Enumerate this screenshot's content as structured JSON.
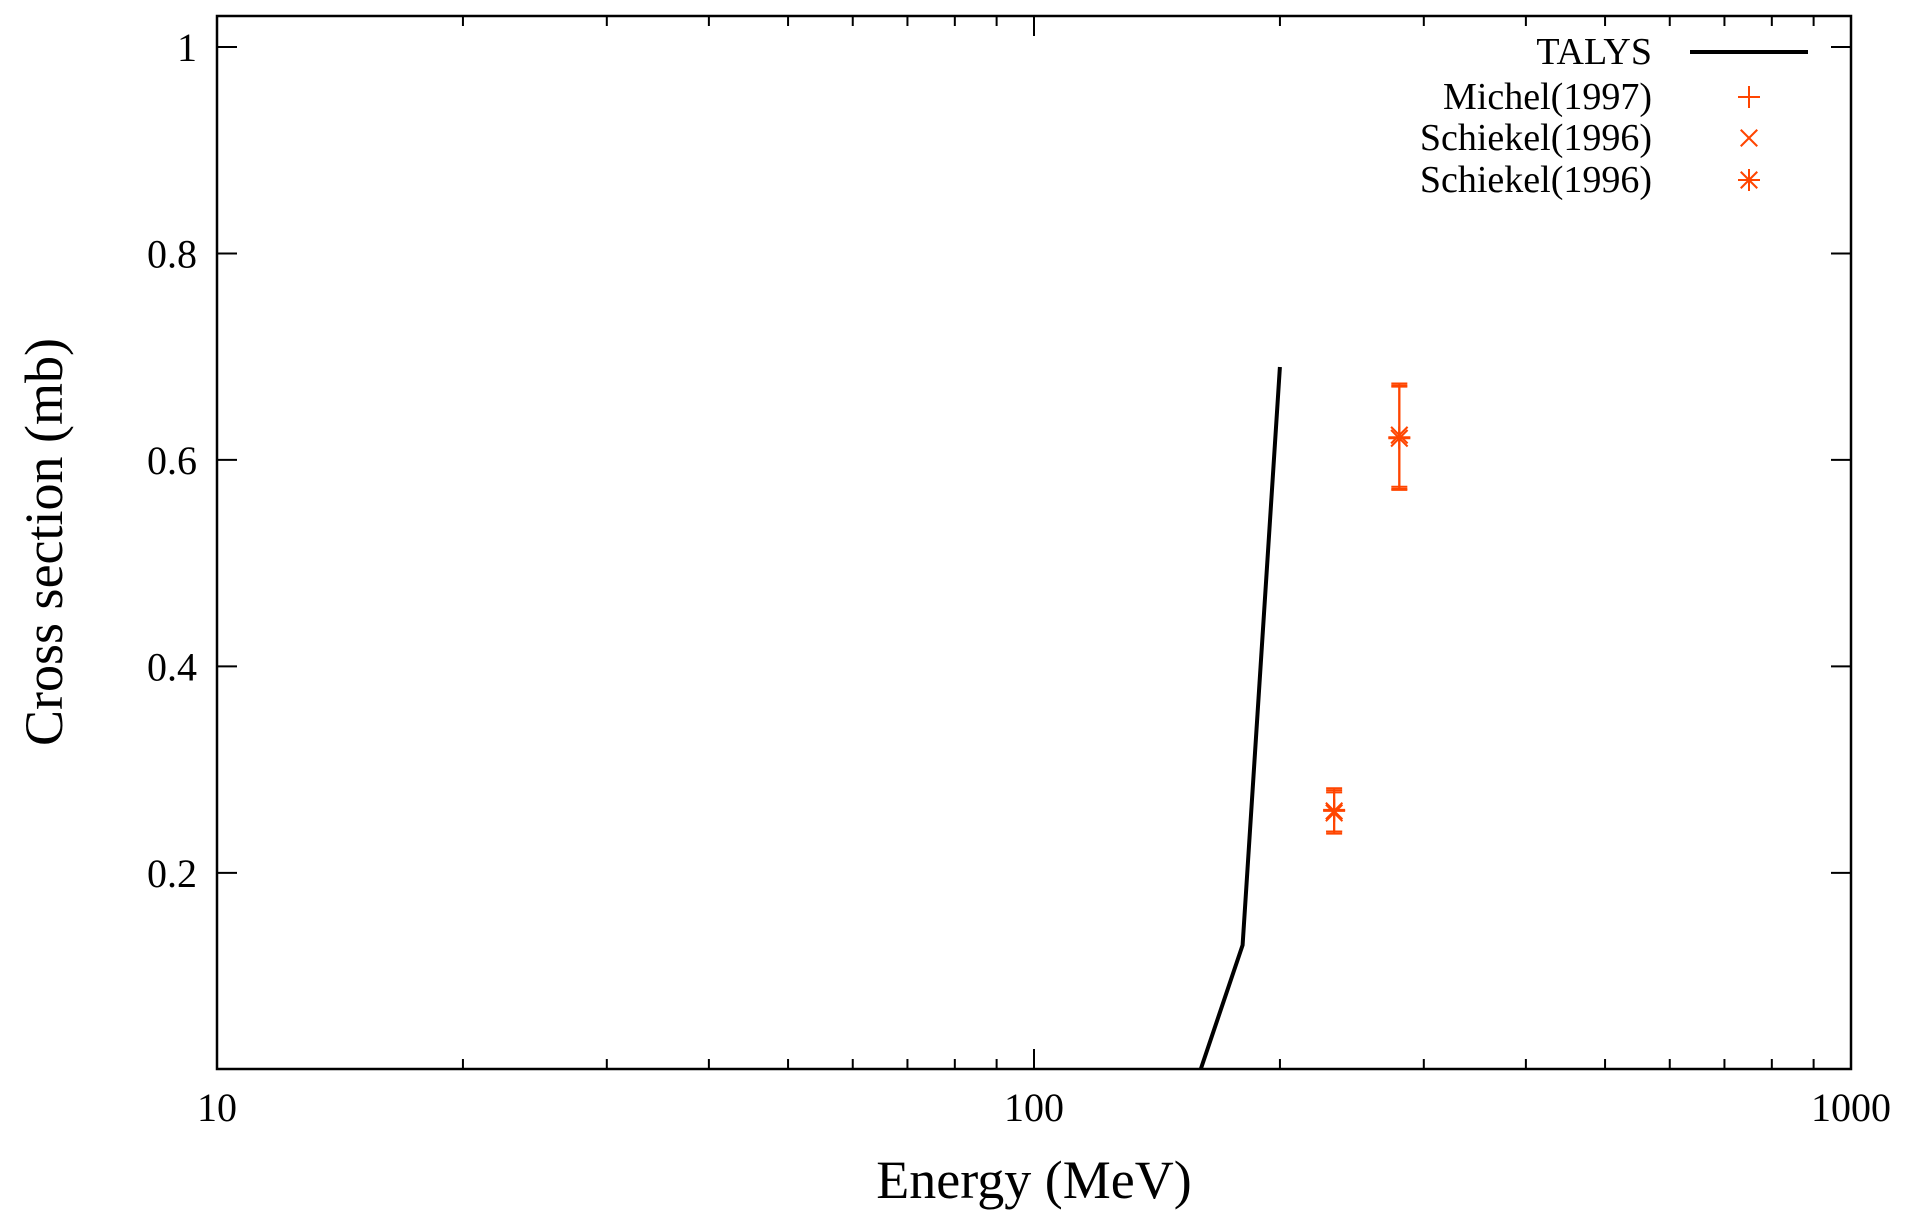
{
  "chart_data": {
    "type": "line",
    "xlabel": "Energy (MeV)",
    "ylabel": "Cross section (mb)",
    "xscale": "log",
    "xlim": [
      10,
      1000
    ],
    "ylim": [
      0.01,
      1.03
    ],
    "x_ticks": [
      10,
      100,
      1000
    ],
    "x_tick_labels": [
      "10",
      "100",
      "1000"
    ],
    "y_ticks": [
      0.2,
      0.4,
      0.6,
      0.8,
      1.0
    ],
    "y_tick_labels": [
      "0.2",
      "0.4",
      "0.6",
      "0.8",
      "1"
    ],
    "grid": false,
    "legend_position": "top-right",
    "series": [
      {
        "name": "TALYS",
        "kind": "line",
        "color": "#000000",
        "x": [
          160,
          180,
          200
        ],
        "y": [
          0.0,
          0.13,
          0.69
        ]
      },
      {
        "name": "Michel(1997)",
        "kind": "points",
        "marker": "plus",
        "color": "#ff4500",
        "x": [
          233,
          280
        ],
        "y": [
          0.261,
          0.622
        ],
        "err": [
          0.021,
          0.05
        ]
      },
      {
        "name": "Schiekel(1996)",
        "kind": "points",
        "marker": "cross",
        "color": "#ff4500",
        "x": [
          233,
          280
        ],
        "y": [
          0.258,
          0.624
        ],
        "err": [
          0.02,
          0.05
        ]
      },
      {
        "name": "Schiekel(1996)",
        "kind": "points",
        "marker": "star",
        "color": "#ff4500",
        "x": [
          233,
          280
        ],
        "y": [
          0.26,
          0.621
        ],
        "err": [
          0.02,
          0.05
        ]
      }
    ]
  }
}
